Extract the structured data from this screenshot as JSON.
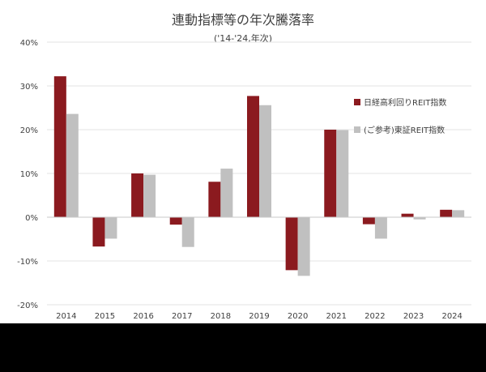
{
  "chart_data": {
    "type": "bar",
    "title": "連動指標等の年次騰落率",
    "subtitle": "('14-'24,年次)",
    "xlabel": "",
    "ylabel": "",
    "categories": [
      "2014",
      "2015",
      "2016",
      "2017",
      "2018",
      "2019",
      "2020",
      "2021",
      "2022",
      "2023",
      "2024"
    ],
    "series": [
      {
        "name": "日経高利回りREIT指数",
        "color": "#8b1a1f",
        "values": [
          32.2,
          -6.7,
          10.0,
          -1.7,
          8.1,
          27.7,
          -12.1,
          20.0,
          -1.6,
          0.8,
          1.7
        ]
      },
      {
        "name": "(ご参考)東証REIT指数",
        "color": "#c0c0c0",
        "values": [
          23.6,
          -4.9,
          9.7,
          -6.8,
          11.1,
          25.6,
          -13.4,
          19.9,
          -4.9,
          -0.5,
          1.6
        ]
      }
    ],
    "ylim": [
      -20,
      40
    ],
    "yticks": [
      -20,
      -10,
      0,
      10,
      20,
      30,
      40
    ],
    "ytick_labels": [
      "-20%",
      "-10%",
      "0%",
      "10%",
      "20%",
      "30%",
      "40%"
    ],
    "grid": true,
    "legend_position": "right"
  }
}
